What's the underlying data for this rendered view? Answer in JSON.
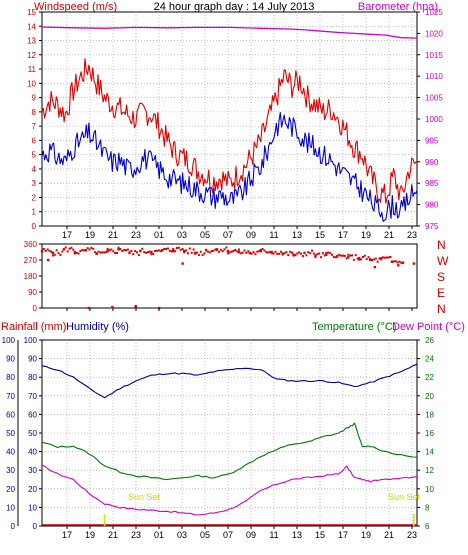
{
  "header": {
    "left_label": "Windspeed (m/s)",
    "title": "24 hour graph day : 14 July 2013",
    "right_label": "Barometer (hpa)"
  },
  "bottom_labels": {
    "rainfall": "Rainfall (mm)",
    "humidity": "Humidity (%)",
    "temperature": "Temperature (°C)",
    "dewpoint": "Dew Point (°C)"
  },
  "annotations": {
    "sunset_1": "Sun Set",
    "sunset_2": "Sun Set"
  },
  "colors": {
    "frame": "#000000",
    "grid": "#a0a0a0",
    "windspeed_axis": "#cc0000",
    "barometer": "#cc00cc",
    "wind_gust": "#dd0000",
    "wind_avg": "#0000cc",
    "wind_dir": "#dd0000",
    "rainfall": "#cc0000",
    "humidity": "#000099",
    "temperature": "#007700",
    "dewpoint": "#cc00cc",
    "sunset": "#dddd00"
  },
  "chart_data": [
    {
      "type": "line",
      "title": "24 hour graph day : 14 July 2013",
      "x_ticks": [
        "17",
        "19",
        "21",
        "23",
        "01",
        "03",
        "05",
        "07",
        "09",
        "11",
        "13",
        "15",
        "17",
        "19",
        "21",
        "23"
      ],
      "ylabel_left": "Windspeed (m/s)",
      "ylabel_right": "Barometer (hpa)",
      "y_left_ticks": [
        "0",
        "1",
        "2",
        "3",
        "4",
        "5",
        "6",
        "7",
        "8",
        "9",
        "10",
        "11",
        "12",
        "13",
        "14",
        "15"
      ],
      "y_right_ticks": [
        "975",
        "980",
        "985",
        "990",
        "995",
        "1000",
        "1005",
        "1010",
        "1015",
        "1020",
        "1025"
      ],
      "ylim_left": [
        0,
        15
      ],
      "ylim_right": [
        975,
        1025
      ],
      "grid": true,
      "series": [
        {
          "name": "Barometer",
          "axis": "right",
          "hours": [
            0,
            2,
            4,
            6,
            8,
            10,
            12,
            14,
            16,
            17,
            18,
            19,
            20,
            21,
            22,
            23,
            24
          ],
          "values": [
            1021.5,
            1021.3,
            1021.2,
            1021.4,
            1021.3,
            1021.4,
            1021.4,
            1021.2,
            1021.0,
            1020.8,
            1020.5,
            1020.2,
            1020.0,
            1019.8,
            1019.6,
            1019.0,
            1018.9
          ]
        },
        {
          "name": "Wind gust",
          "axis": "left",
          "hours": [
            0,
            0.5,
            1,
            1.5,
            2,
            2.5,
            3,
            3.5,
            4,
            4.5,
            5,
            5.5,
            6,
            6.5,
            7,
            7.5,
            8,
            8.5,
            9,
            9.5,
            10,
            10.5,
            11,
            11.5,
            12,
            12.5,
            13,
            13.5,
            14,
            14.5,
            15,
            15.5,
            16,
            16.5,
            17,
            17.5,
            18,
            18.5,
            19,
            19.5,
            20,
            20.5,
            21,
            21.5,
            22,
            22.5,
            23,
            23.5,
            24
          ],
          "values": [
            8.0,
            8.8,
            8.5,
            7.8,
            9.5,
            10.5,
            11.2,
            10.0,
            9.0,
            8.5,
            8.2,
            7.8,
            7.5,
            8.0,
            7.8,
            7.0,
            6.0,
            5.2,
            4.8,
            4.5,
            3.8,
            3.5,
            3.2,
            3.4,
            3.0,
            3.6,
            4.2,
            5.0,
            6.0,
            7.5,
            9.0,
            10.5,
            9.8,
            10.2,
            9.0,
            8.5,
            8.0,
            8.2,
            7.5,
            6.5,
            5.5,
            5.0,
            3.5,
            2.5,
            2.0,
            3.5,
            2.0,
            4.0,
            4.5
          ]
        },
        {
          "name": "Wind average",
          "axis": "left",
          "hours": [
            0,
            0.5,
            1,
            1.5,
            2,
            2.5,
            3,
            3.5,
            4,
            4.5,
            5,
            5.5,
            6,
            6.5,
            7,
            7.5,
            8,
            8.5,
            9,
            9.5,
            10,
            10.5,
            11,
            11.5,
            12,
            12.5,
            13,
            13.5,
            14,
            14.5,
            15,
            15.5,
            16,
            16.5,
            17,
            17.5,
            18,
            18.5,
            19,
            19.5,
            20,
            20.5,
            21,
            21.5,
            22,
            22.5,
            23,
            23.5,
            24
          ],
          "values": [
            5.0,
            5.3,
            4.8,
            4.5,
            5.5,
            6.0,
            6.5,
            5.8,
            5.0,
            4.5,
            4.6,
            4.0,
            4.2,
            4.8,
            4.5,
            4.0,
            3.5,
            3.2,
            3.0,
            2.8,
            2.5,
            2.3,
            2.0,
            2.2,
            1.8,
            2.0,
            2.6,
            3.5,
            4.2,
            5.5,
            7.0,
            7.5,
            7.0,
            6.5,
            5.8,
            5.5,
            5.0,
            4.6,
            4.0,
            3.5,
            3.0,
            2.5,
            1.8,
            1.2,
            1.0,
            1.5,
            1.0,
            2.0,
            2.5
          ]
        }
      ]
    },
    {
      "type": "scatter",
      "title": "",
      "x_ticks": [
        "17",
        "19",
        "21",
        "23",
        "01",
        "03",
        "05",
        "07",
        "09",
        "11",
        "13",
        "15",
        "17",
        "19",
        "21",
        "23"
      ],
      "y_left_ticks": [
        "0",
        "90",
        "180",
        "270",
        "360"
      ],
      "y_right_ticks": [
        "N",
        "W",
        "S",
        "E",
        "N"
      ],
      "ylim": [
        0,
        360
      ],
      "series": [
        {
          "name": "Wind direction",
          "hours": [
            0,
            0.7,
            1.4,
            2.1,
            2.8,
            3.5,
            4.2,
            4.9,
            5.6,
            6.3,
            7.0,
            7.7,
            8.4,
            9.1,
            9.8,
            10.5,
            11.2,
            11.9,
            12.6,
            13.3,
            14.0,
            14.7,
            15.4,
            16.1,
            16.8,
            17.5,
            18.2,
            18.9,
            19.6,
            20.3,
            21.0,
            21.7,
            22.4,
            23.1,
            23.8,
            3.0,
            4.5,
            6.0,
            7.5,
            0.4,
            9.0,
            21.3,
            22.8
          ],
          "values": [
            320,
            310,
            330,
            315,
            325,
            305,
            320,
            330,
            310,
            320,
            315,
            325,
            330,
            320,
            310,
            325,
            330,
            320,
            315,
            310,
            320,
            315,
            305,
            300,
            310,
            295,
            300,
            290,
            285,
            280,
            270,
            275,
            260,
            255,
            250,
            0,
            5,
            10,
            0,
            270,
            250,
            230,
            240
          ]
        }
      ]
    },
    {
      "type": "line",
      "title": "",
      "x_ticks": [
        "17",
        "19",
        "21",
        "23",
        "01",
        "03",
        "05",
        "07",
        "09",
        "11",
        "13",
        "15",
        "17",
        "19",
        "21",
        "23"
      ],
      "ylabel_left": "Humidity (%)",
      "ylabel_right": "Temperature (°C)",
      "y_left_ticks": [
        "0",
        "10",
        "20",
        "30",
        "40",
        "50",
        "60",
        "70",
        "80",
        "90",
        "100"
      ],
      "y_rain_ticks": [
        "0",
        "10",
        "20",
        "30",
        "40",
        "50",
        "60",
        "70",
        "80",
        "90",
        "100"
      ],
      "y_right_ticks": [
        "6",
        "8",
        "10",
        "12",
        "14",
        "16",
        "18",
        "20",
        "22",
        "24",
        "26"
      ],
      "ylim_left": [
        0,
        100
      ],
      "ylim_right": [
        6,
        26
      ],
      "grid": true,
      "series": [
        {
          "name": "Humidity",
          "axis": "left",
          "hours": [
            0,
            1,
            2,
            3,
            4,
            5,
            6,
            7,
            8,
            9,
            10,
            11,
            12,
            13,
            14,
            15,
            16,
            17,
            18,
            19,
            20,
            21,
            22,
            23,
            24
          ],
          "values": [
            86,
            84,
            80,
            74,
            69,
            74,
            78,
            81,
            82,
            82,
            81,
            83,
            84,
            85,
            84,
            79,
            78,
            78,
            78,
            77,
            75,
            77,
            80,
            83,
            87
          ]
        },
        {
          "name": "Temperature",
          "axis": "right",
          "hours": [
            0,
            1,
            2,
            3,
            4,
            5,
            6,
            7,
            8,
            9,
            10,
            11,
            12,
            13,
            14,
            15,
            16,
            17,
            18,
            19,
            19.5,
            20,
            20.5,
            21,
            22,
            23,
            24
          ],
          "values": [
            15.0,
            14.5,
            14.6,
            13.8,
            12.5,
            11.8,
            11.4,
            11.2,
            11.0,
            11.2,
            11.4,
            11.2,
            11.6,
            12.5,
            13.5,
            14.2,
            14.8,
            15.0,
            15.6,
            16.0,
            16.5,
            17.0,
            14.5,
            14.6,
            14.0,
            13.6,
            13.4
          ]
        },
        {
          "name": "Dew Point",
          "axis": "right",
          "hours": [
            0,
            1,
            2,
            3,
            4,
            5,
            6,
            7,
            8,
            9,
            10,
            11,
            12,
            13,
            14,
            15,
            16,
            17,
            18,
            19,
            19.5,
            20,
            20.5,
            21,
            22,
            23,
            24
          ],
          "values": [
            12.5,
            11.6,
            11.0,
            9.5,
            8.4,
            8.0,
            7.8,
            7.7,
            7.6,
            7.4,
            7.2,
            7.4,
            7.8,
            8.6,
            9.8,
            10.5,
            11.0,
            11.2,
            11.4,
            11.6,
            12.4,
            11.2,
            11.0,
            10.8,
            11.0,
            11.2,
            11.3
          ]
        },
        {
          "name": "Rainfall",
          "axis": "rain",
          "hours": [
            0,
            24
          ],
          "values": [
            0,
            0
          ]
        }
      ],
      "sunset_hours": [
        4,
        23.8
      ]
    }
  ]
}
